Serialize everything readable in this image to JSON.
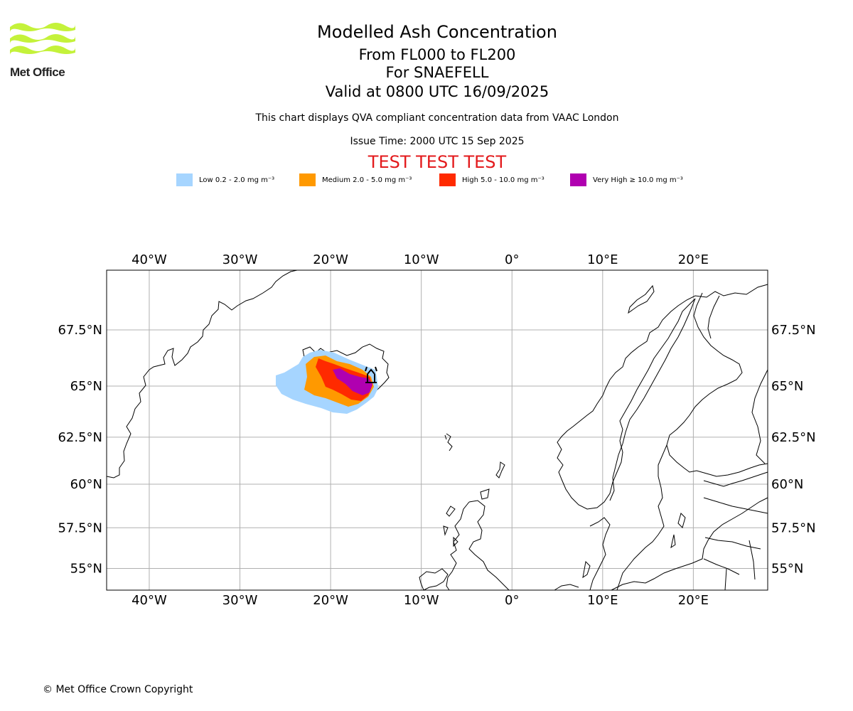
{
  "header": {
    "logo_text": "Met Office",
    "title": "Modelled Ash Concentration",
    "flight_levels": "From FL000 to FL200",
    "volcano_line": "For SNAEFELL",
    "valid_line": "Valid at 0800 UTC 16/09/2025",
    "description": "This chart displays QVA compliant concentration data from VAAC London",
    "issue_time": "Issue Time: 2000 UTC 15 Sep 2025",
    "test_banner": "TEST TEST TEST"
  },
  "legend": [
    {
      "label": "Low 0.2 - 2.0 mg m⁻³",
      "color": "#a6d5ff"
    },
    {
      "label": "Medium 2.0 - 5.0 mg m⁻³",
      "color": "#ff9900"
    },
    {
      "label": "High 5.0 - 10.0 mg m⁻³",
      "color": "#ff2a00"
    },
    {
      "label": "Very High ≥ 10.0 mg m⁻³",
      "color": "#b000b0"
    }
  ],
  "map": {
    "projection": "mercator",
    "extent": {
      "lon_min": -44.7,
      "lon_max": 28.2,
      "lat_min": 53.6,
      "lat_max": 69.9
    },
    "gridlines": true,
    "lon_ticks": [
      {
        "lon": -40,
        "label": "40°W"
      },
      {
        "lon": -30,
        "label": "30°W"
      },
      {
        "lon": -20,
        "label": "20°W"
      },
      {
        "lon": -10,
        "label": "10°W"
      },
      {
        "lon": 0,
        "label": "0°"
      },
      {
        "lon": 10,
        "label": "10°E"
      },
      {
        "lon": 20,
        "label": "20°E"
      }
    ],
    "lat_ticks": [
      {
        "lat": 67.5,
        "label": "67.5°N"
      },
      {
        "lat": 65,
        "label": "65°N"
      },
      {
        "lat": 62.5,
        "label": "62.5°N"
      },
      {
        "lat": 60,
        "label": "60°N"
      },
      {
        "lat": 57.5,
        "label": "57.5°N"
      },
      {
        "lat": 55,
        "label": "55°N"
      }
    ],
    "volcano": {
      "name": "SNAEFELL",
      "lon": -15.55,
      "lat": 64.8
    },
    "ash_levels": [
      "Low",
      "Medium",
      "High",
      "Very High"
    ]
  },
  "footer": {
    "copyright": "© Met Office Crown Copyright"
  }
}
